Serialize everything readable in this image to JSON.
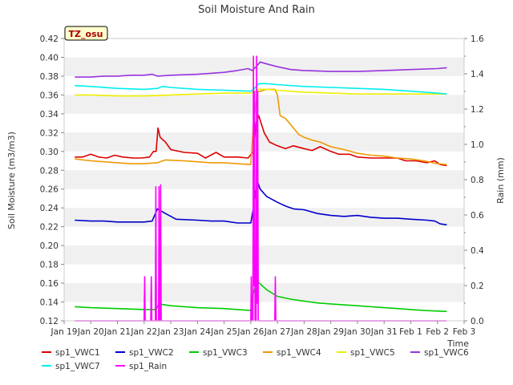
{
  "chart_data": {
    "type": "line",
    "title": "Soil Moisture And Rain",
    "badge": "TZ_osu",
    "xlabel": "Time",
    "ylabel": "Soil Moisture (m3/m3)",
    "y2label": "Rain (mm)",
    "xlim": [
      0,
      15
    ],
    "ylim": [
      0.12,
      0.42
    ],
    "y2lim": [
      0.0,
      1.6
    ],
    "x_ticks": [
      {
        "x": 0,
        "label": "Jan 19"
      },
      {
        "x": 1,
        "label": "Jan 20"
      },
      {
        "x": 2,
        "label": "Jan 21"
      },
      {
        "x": 3,
        "label": "Jan 22"
      },
      {
        "x": 4,
        "label": "Jan 23"
      },
      {
        "x": 5,
        "label": "Jan 24"
      },
      {
        "x": 6,
        "label": "Jan 25"
      },
      {
        "x": 7,
        "label": "Jan 26"
      },
      {
        "x": 8,
        "label": "Jan 27"
      },
      {
        "x": 9,
        "label": "Jan 28"
      },
      {
        "x": 10,
        "label": "Jan 29"
      },
      {
        "x": 11,
        "label": "Jan 30"
      },
      {
        "x": 12,
        "label": "Jan 31"
      },
      {
        "x": 13,
        "label": "Feb 1"
      },
      {
        "x": 14,
        "label": "Feb 2"
      },
      {
        "x": 15,
        "label": "Feb 3"
      }
    ],
    "y_ticks": [
      "0.12",
      "0.14",
      "0.16",
      "0.18",
      "0.20",
      "0.22",
      "0.24",
      "0.26",
      "0.28",
      "0.30",
      "0.32",
      "0.34",
      "0.36",
      "0.38",
      "0.40",
      "0.42"
    ],
    "y2_ticks": [
      "0.0",
      "0.2",
      "0.4",
      "0.6",
      "0.8",
      "1.0",
      "1.2",
      "1.4",
      "1.6"
    ],
    "grid": "horizontal bands",
    "legend_position": "bottom",
    "series": [
      {
        "name": "sp1_VWC1",
        "axis": "left",
        "color": "#dd0000",
        "points": [
          [
            0.4,
            0.294
          ],
          [
            0.7,
            0.294
          ],
          [
            1.0,
            0.297
          ],
          [
            1.3,
            0.294
          ],
          [
            1.6,
            0.293
          ],
          [
            1.9,
            0.296
          ],
          [
            2.2,
            0.294
          ],
          [
            2.6,
            0.293
          ],
          [
            2.9,
            0.293
          ],
          [
            3.2,
            0.294
          ],
          [
            3.35,
            0.3
          ],
          [
            3.45,
            0.3
          ],
          [
            3.52,
            0.325
          ],
          [
            3.6,
            0.315
          ],
          [
            3.8,
            0.31
          ],
          [
            4.0,
            0.302
          ],
          [
            4.5,
            0.299
          ],
          [
            5.0,
            0.298
          ],
          [
            5.3,
            0.293
          ],
          [
            5.7,
            0.299
          ],
          [
            6.0,
            0.294
          ],
          [
            6.5,
            0.294
          ],
          [
            6.9,
            0.293
          ],
          [
            7.1,
            0.3
          ],
          [
            7.2,
            0.33
          ],
          [
            7.3,
            0.338
          ],
          [
            7.5,
            0.32
          ],
          [
            7.7,
            0.31
          ],
          [
            8.0,
            0.306
          ],
          [
            8.3,
            0.303
          ],
          [
            8.6,
            0.306
          ],
          [
            9.0,
            0.303
          ],
          [
            9.3,
            0.301
          ],
          [
            9.6,
            0.305
          ],
          [
            10.0,
            0.3
          ],
          [
            10.3,
            0.297
          ],
          [
            10.7,
            0.297
          ],
          [
            11.0,
            0.294
          ],
          [
            11.5,
            0.293
          ],
          [
            12.0,
            0.293
          ],
          [
            12.5,
            0.293
          ],
          [
            12.8,
            0.29
          ],
          [
            13.2,
            0.29
          ],
          [
            13.6,
            0.288
          ],
          [
            13.9,
            0.29
          ],
          [
            14.1,
            0.286
          ],
          [
            14.35,
            0.285
          ]
        ]
      },
      {
        "name": "sp1_VWC2",
        "axis": "left",
        "color": "#0000cc",
        "points": [
          [
            0.4,
            0.227
          ],
          [
            1.0,
            0.226
          ],
          [
            1.5,
            0.226
          ],
          [
            2.0,
            0.225
          ],
          [
            2.5,
            0.225
          ],
          [
            3.0,
            0.225
          ],
          [
            3.3,
            0.226
          ],
          [
            3.5,
            0.239
          ],
          [
            3.8,
            0.234
          ],
          [
            4.2,
            0.228
          ],
          [
            5.0,
            0.227
          ],
          [
            5.5,
            0.226
          ],
          [
            6.0,
            0.226
          ],
          [
            6.5,
            0.224
          ],
          [
            7.0,
            0.224
          ],
          [
            7.1,
            0.24
          ],
          [
            7.25,
            0.268
          ],
          [
            7.35,
            0.26
          ],
          [
            7.6,
            0.252
          ],
          [
            8.0,
            0.246
          ],
          [
            8.3,
            0.242
          ],
          [
            8.6,
            0.239
          ],
          [
            9.0,
            0.238
          ],
          [
            9.5,
            0.234
          ],
          [
            10.0,
            0.232
          ],
          [
            10.5,
            0.231
          ],
          [
            11.0,
            0.232
          ],
          [
            11.5,
            0.23
          ],
          [
            12.0,
            0.229
          ],
          [
            12.5,
            0.229
          ],
          [
            13.0,
            0.228
          ],
          [
            13.6,
            0.227
          ],
          [
            13.9,
            0.226
          ],
          [
            14.1,
            0.223
          ],
          [
            14.35,
            0.222
          ]
        ]
      },
      {
        "name": "sp1_VWC3",
        "axis": "left",
        "color": "#00cc00",
        "points": [
          [
            0.4,
            0.135
          ],
          [
            1.0,
            0.134
          ],
          [
            2.0,
            0.133
          ],
          [
            3.0,
            0.132
          ],
          [
            3.45,
            0.132
          ],
          [
            3.55,
            0.138
          ],
          [
            4.0,
            0.136
          ],
          [
            5.0,
            0.134
          ],
          [
            6.0,
            0.133
          ],
          [
            6.5,
            0.132
          ],
          [
            7.0,
            0.131
          ],
          [
            7.1,
            0.15
          ],
          [
            7.25,
            0.162
          ],
          [
            7.4,
            0.158
          ],
          [
            7.6,
            0.153
          ],
          [
            8.0,
            0.146
          ],
          [
            8.5,
            0.143
          ],
          [
            9.0,
            0.141
          ],
          [
            9.5,
            0.139
          ],
          [
            10.0,
            0.138
          ],
          [
            11.0,
            0.136
          ],
          [
            12.0,
            0.134
          ],
          [
            12.5,
            0.133
          ],
          [
            13.0,
            0.132
          ],
          [
            13.5,
            0.131
          ],
          [
            14.35,
            0.13
          ]
        ]
      },
      {
        "name": "sp1_VWC4",
        "axis": "left",
        "color": "#ee9900",
        "points": [
          [
            0.4,
            0.292
          ],
          [
            1.0,
            0.29
          ],
          [
            1.5,
            0.289
          ],
          [
            2.0,
            0.288
          ],
          [
            2.5,
            0.287
          ],
          [
            3.0,
            0.287
          ],
          [
            3.5,
            0.288
          ],
          [
            3.8,
            0.291
          ],
          [
            4.5,
            0.29
          ],
          [
            5.0,
            0.289
          ],
          [
            5.5,
            0.288
          ],
          [
            6.0,
            0.288
          ],
          [
            6.5,
            0.287
          ],
          [
            7.0,
            0.286
          ],
          [
            7.1,
            0.33
          ],
          [
            7.25,
            0.363
          ],
          [
            7.6,
            0.366
          ],
          [
            7.9,
            0.366
          ],
          [
            8.0,
            0.36
          ],
          [
            8.1,
            0.338
          ],
          [
            8.3,
            0.335
          ],
          [
            8.6,
            0.325
          ],
          [
            8.8,
            0.318
          ],
          [
            9.0,
            0.315
          ],
          [
            9.3,
            0.312
          ],
          [
            9.6,
            0.31
          ],
          [
            10.0,
            0.305
          ],
          [
            10.5,
            0.302
          ],
          [
            11.0,
            0.298
          ],
          [
            11.5,
            0.296
          ],
          [
            12.0,
            0.295
          ],
          [
            12.5,
            0.293
          ],
          [
            13.0,
            0.292
          ],
          [
            13.5,
            0.29
          ],
          [
            14.0,
            0.287
          ],
          [
            14.35,
            0.286
          ]
        ]
      },
      {
        "name": "sp1_VWC5",
        "axis": "left",
        "color": "#eeee00",
        "points": [
          [
            0.4,
            0.36
          ],
          [
            1.0,
            0.36
          ],
          [
            2.0,
            0.359
          ],
          [
            3.0,
            0.359
          ],
          [
            4.0,
            0.36
          ],
          [
            5.0,
            0.361
          ],
          [
            6.0,
            0.362
          ],
          [
            6.8,
            0.362
          ],
          [
            7.0,
            0.362
          ],
          [
            7.3,
            0.366
          ],
          [
            7.6,
            0.366
          ],
          [
            8.0,
            0.365
          ],
          [
            9.0,
            0.363
          ],
          [
            10.0,
            0.362
          ],
          [
            11.0,
            0.361
          ],
          [
            12.0,
            0.361
          ],
          [
            13.0,
            0.361
          ],
          [
            14.0,
            0.361
          ],
          [
            14.35,
            0.361
          ]
        ]
      },
      {
        "name": "sp1_VWC6",
        "axis": "left",
        "color": "#9933dd",
        "points": [
          [
            0.4,
            0.379
          ],
          [
            1.0,
            0.379
          ],
          [
            1.5,
            0.38
          ],
          [
            2.0,
            0.38
          ],
          [
            2.5,
            0.381
          ],
          [
            3.0,
            0.381
          ],
          [
            3.3,
            0.382
          ],
          [
            3.5,
            0.38
          ],
          [
            4.0,
            0.381
          ],
          [
            5.0,
            0.382
          ],
          [
            6.0,
            0.384
          ],
          [
            6.5,
            0.386
          ],
          [
            6.9,
            0.388
          ],
          [
            7.05,
            0.386
          ],
          [
            7.2,
            0.39
          ],
          [
            7.35,
            0.395
          ],
          [
            7.6,
            0.393
          ],
          [
            8.0,
            0.39
          ],
          [
            8.5,
            0.387
          ],
          [
            9.0,
            0.386
          ],
          [
            10.0,
            0.385
          ],
          [
            11.0,
            0.385
          ],
          [
            12.0,
            0.386
          ],
          [
            13.0,
            0.387
          ],
          [
            14.0,
            0.388
          ],
          [
            14.35,
            0.389
          ]
        ]
      },
      {
        "name": "sp1_VWC7",
        "axis": "left",
        "color": "#00eeee",
        "points": [
          [
            0.4,
            0.37
          ],
          [
            1.0,
            0.369
          ],
          [
            2.0,
            0.367
          ],
          [
            3.0,
            0.366
          ],
          [
            3.5,
            0.367
          ],
          [
            3.7,
            0.369
          ],
          [
            4.0,
            0.368
          ],
          [
            5.0,
            0.366
          ],
          [
            6.0,
            0.365
          ],
          [
            7.0,
            0.364
          ],
          [
            7.1,
            0.366
          ],
          [
            7.3,
            0.372
          ],
          [
            7.6,
            0.372
          ],
          [
            8.0,
            0.371
          ],
          [
            9.0,
            0.369
          ],
          [
            10.0,
            0.368
          ],
          [
            11.0,
            0.367
          ],
          [
            12.0,
            0.366
          ],
          [
            13.0,
            0.364
          ],
          [
            14.0,
            0.362
          ],
          [
            14.35,
            0.361
          ]
        ]
      },
      {
        "name": "sp1_Rain",
        "axis": "right",
        "color": "#ff00ff",
        "points": [
          [
            0.4,
            0
          ],
          [
            3.0,
            0
          ],
          [
            3.02,
            0.25
          ],
          [
            3.04,
            0
          ],
          [
            3.25,
            0
          ],
          [
            3.27,
            0.25
          ],
          [
            3.29,
            0
          ],
          [
            3.42,
            0
          ],
          [
            3.44,
            0.76
          ],
          [
            3.46,
            0
          ],
          [
            3.54,
            0
          ],
          [
            3.56,
            0.76
          ],
          [
            3.58,
            0
          ],
          [
            3.6,
            0
          ],
          [
            3.62,
            0.77
          ],
          [
            3.64,
            0
          ],
          [
            7.0,
            0
          ],
          [
            7.02,
            0.25
          ],
          [
            7.04,
            0
          ],
          [
            7.08,
            0
          ],
          [
            7.1,
            1.5
          ],
          [
            7.12,
            0.2
          ],
          [
            7.14,
            1.3
          ],
          [
            7.16,
            0
          ],
          [
            7.2,
            0
          ],
          [
            7.22,
            1.5
          ],
          [
            7.24,
            0.1
          ],
          [
            7.26,
            1.3
          ],
          [
            7.28,
            0
          ],
          [
            7.9,
            0
          ],
          [
            7.92,
            0.25
          ],
          [
            7.94,
            0
          ],
          [
            14.35,
            0
          ]
        ]
      }
    ]
  }
}
